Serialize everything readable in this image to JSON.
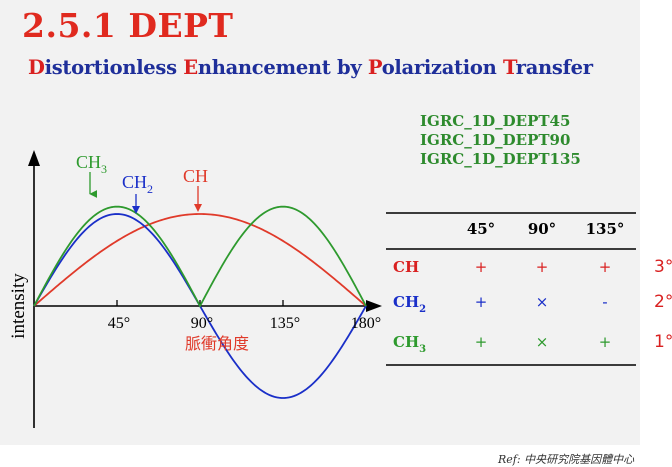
{
  "slide": {
    "title": "2.5.1  DEPT",
    "subtitle": [
      {
        "init": "D",
        "rest": "istortionless "
      },
      {
        "init": "E",
        "rest": "nhancement by "
      },
      {
        "init": "P",
        "rest": "olarization "
      },
      {
        "init": "T",
        "rest": "ransfer"
      }
    ],
    "codes": [
      "IGRC_1D_DEPT45",
      "IGRC_1D_DEPT90",
      "IGRC_1D_DEPT135"
    ],
    "reference": "Ref: 中央研究院基因體中心"
  },
  "graph": {
    "y_label": "intensity",
    "x_ticks": [
      "45°",
      "90°",
      "135°",
      "180°"
    ],
    "x_caption": "脈衝角度",
    "curve_labels": {
      "ch3": "CH",
      "ch3_sub": "3",
      "ch2": "CH",
      "ch2_sub": "2",
      "ch": "CH"
    },
    "colors": {
      "ch": "#e03a2a",
      "ch2": "#1a2fc8",
      "ch3": "#2e9a2e"
    }
  },
  "table": {
    "headers": [
      "45°",
      "90°",
      "135°"
    ],
    "rows": [
      {
        "label": "CH",
        "sub": "",
        "values": [
          "+",
          "+",
          "+"
        ],
        "degree": "3°",
        "color": "#d92020"
      },
      {
        "label": "CH",
        "sub": "2",
        "values": [
          "+",
          "×",
          "-"
        ],
        "degree": "2°",
        "color": "#1a2fc8"
      },
      {
        "label": "CH",
        "sub": "3",
        "values": [
          "+",
          "×",
          "+"
        ],
        "degree": "1°",
        "color": "#2e9a2e"
      }
    ]
  }
}
